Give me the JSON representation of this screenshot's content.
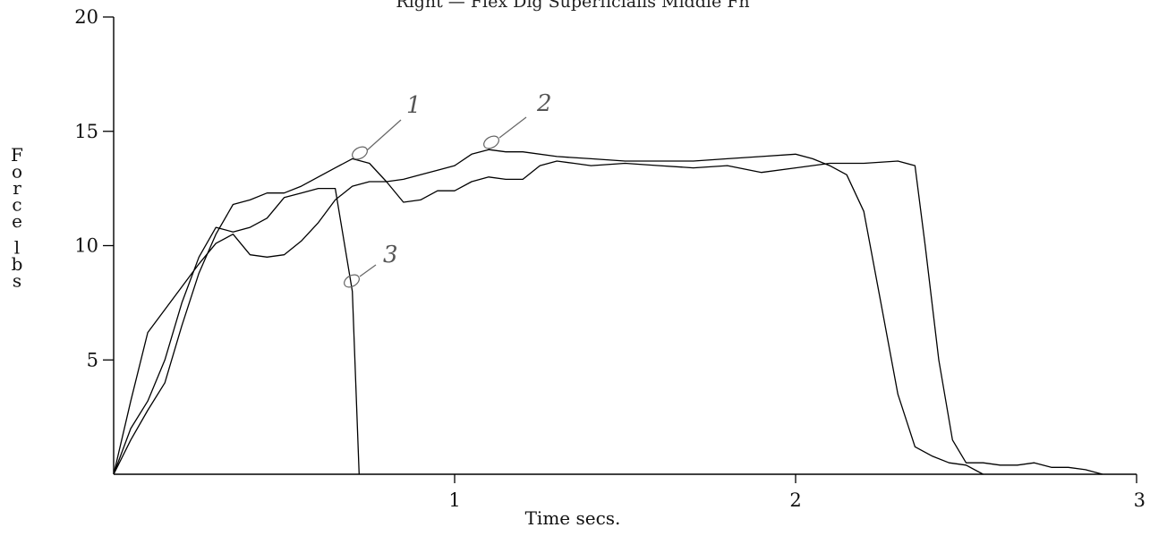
{
  "chart_data": {
    "type": "line",
    "title": "Right — Flex Dig Superficialis Middle Fn",
    "xlabel": "Time secs.",
    "ylabel": "Force lbs",
    "xlim": [
      0,
      3
    ],
    "ylim": [
      0,
      20
    ],
    "x_ticks": [
      1,
      2,
      3
    ],
    "y_ticks": [
      5,
      10,
      15,
      20
    ],
    "grid": false,
    "annotations": [
      {
        "text": "1",
        "series": 0
      },
      {
        "text": "2",
        "series": 1
      },
      {
        "text": "3",
        "series": 2
      }
    ],
    "series": [
      {
        "name": "",
        "points": [
          [
            0,
            0
          ],
          [
            0.05,
            2
          ],
          [
            0.1,
            3.2
          ],
          [
            0.15,
            5
          ],
          [
            0.2,
            7.5
          ],
          [
            0.25,
            9.5
          ],
          [
            0.3,
            10.8
          ],
          [
            0.35,
            10.6
          ],
          [
            0.4,
            10.8
          ],
          [
            0.45,
            11.2
          ],
          [
            0.5,
            12.1
          ],
          [
            0.55,
            12.3
          ],
          [
            0.6,
            12.5
          ],
          [
            0.65,
            12.5
          ],
          [
            0.7,
            8
          ],
          [
            0.72,
            0
          ]
        ]
      },
      {
        "name": "",
        "points": [
          [
            0,
            0
          ],
          [
            0.05,
            1.5
          ],
          [
            0.1,
            2.8
          ],
          [
            0.15,
            4
          ],
          [
            0.2,
            6.5
          ],
          [
            0.25,
            8.8
          ],
          [
            0.3,
            10.5
          ],
          [
            0.35,
            11.8
          ],
          [
            0.4,
            12
          ],
          [
            0.45,
            12.3
          ],
          [
            0.5,
            12.3
          ],
          [
            0.55,
            12.6
          ],
          [
            0.6,
            13
          ],
          [
            0.65,
            13.4
          ],
          [
            0.7,
            13.8
          ],
          [
            0.75,
            13.6
          ],
          [
            0.8,
            12.8
          ],
          [
            0.85,
            12.9
          ],
          [
            0.9,
            13.1
          ],
          [
            0.95,
            13.3
          ],
          [
            1.0,
            13.5
          ],
          [
            1.05,
            14
          ],
          [
            1.1,
            14.2
          ],
          [
            1.15,
            14.1
          ],
          [
            1.2,
            14.1
          ],
          [
            1.3,
            13.9
          ],
          [
            1.4,
            13.8
          ],
          [
            1.5,
            13.7
          ],
          [
            1.6,
            13.7
          ],
          [
            1.7,
            13.7
          ],
          [
            1.8,
            13.8
          ],
          [
            1.9,
            13.9
          ],
          [
            2.0,
            14
          ],
          [
            2.05,
            13.8
          ],
          [
            2.1,
            13.5
          ],
          [
            2.15,
            13.1
          ],
          [
            2.2,
            11.5
          ],
          [
            2.25,
            7.5
          ],
          [
            2.3,
            3.5
          ],
          [
            2.35,
            1.2
          ],
          [
            2.4,
            0.8
          ],
          [
            2.45,
            0.5
          ],
          [
            2.5,
            0.4
          ],
          [
            2.55,
            0
          ]
        ]
      },
      {
        "name": "",
        "points": [
          [
            0,
            0
          ],
          [
            0.05,
            3.2
          ],
          [
            0.1,
            6.2
          ],
          [
            0.15,
            7.2
          ],
          [
            0.2,
            8.2
          ],
          [
            0.25,
            9.2
          ],
          [
            0.3,
            10.1
          ],
          [
            0.35,
            10.5
          ],
          [
            0.4,
            9.6
          ],
          [
            0.45,
            9.5
          ],
          [
            0.5,
            9.6
          ],
          [
            0.55,
            10.2
          ],
          [
            0.6,
            11
          ],
          [
            0.65,
            12
          ],
          [
            0.7,
            12.6
          ],
          [
            0.75,
            12.8
          ],
          [
            0.8,
            12.8
          ],
          [
            0.85,
            11.9
          ],
          [
            0.9,
            12
          ],
          [
            0.95,
            12.4
          ],
          [
            1.0,
            12.4
          ],
          [
            1.05,
            12.8
          ],
          [
            1.1,
            13
          ],
          [
            1.15,
            12.9
          ],
          [
            1.2,
            12.9
          ],
          [
            1.25,
            13.5
          ],
          [
            1.3,
            13.7
          ],
          [
            1.35,
            13.6
          ],
          [
            1.4,
            13.5
          ],
          [
            1.5,
            13.6
          ],
          [
            1.6,
            13.5
          ],
          [
            1.7,
            13.4
          ],
          [
            1.8,
            13.5
          ],
          [
            1.9,
            13.2
          ],
          [
            2.0,
            13.4
          ],
          [
            2.1,
            13.6
          ],
          [
            2.2,
            13.6
          ],
          [
            2.3,
            13.7
          ],
          [
            2.35,
            13.5
          ],
          [
            2.38,
            10
          ],
          [
            2.42,
            5
          ],
          [
            2.46,
            1.5
          ],
          [
            2.5,
            0.5
          ],
          [
            2.55,
            0.5
          ],
          [
            2.6,
            0.4
          ],
          [
            2.65,
            0.4
          ],
          [
            2.7,
            0.5
          ],
          [
            2.75,
            0.3
          ],
          [
            2.8,
            0.3
          ],
          [
            2.85,
            0.2
          ],
          [
            2.9,
            0
          ]
        ]
      }
    ]
  }
}
